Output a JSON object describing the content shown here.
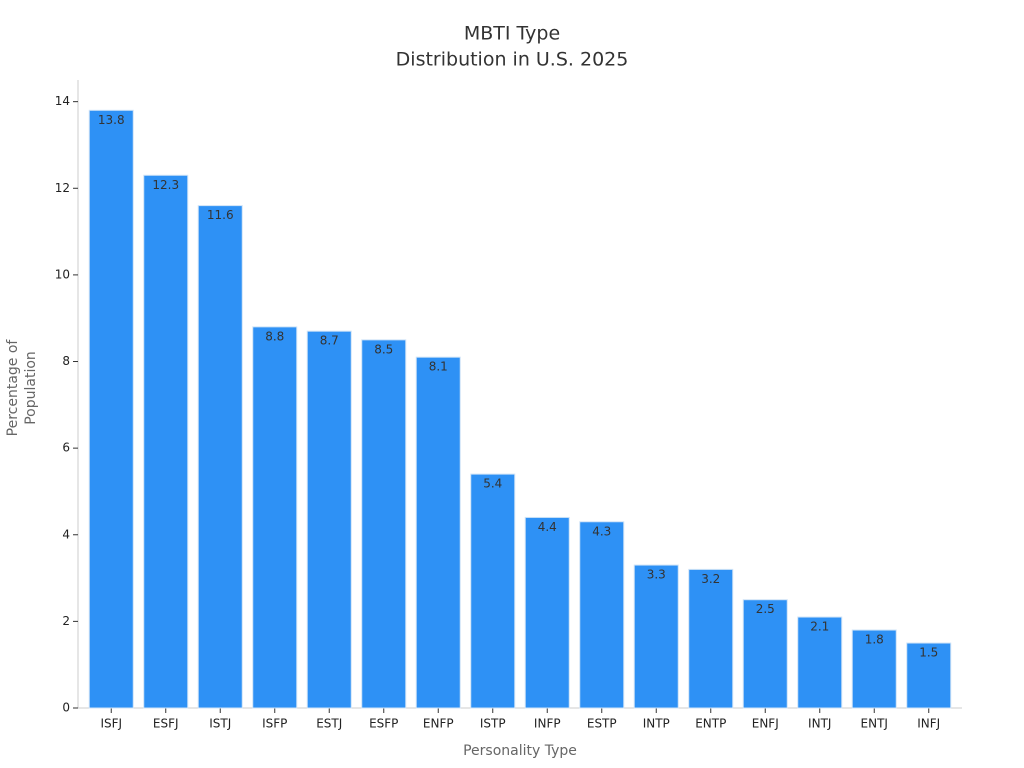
{
  "chart_data": {
    "type": "bar",
    "title": [
      "MBTI Type",
      "Distribution in U.S. 2025"
    ],
    "x_label": "Personality Type",
    "y_label": [
      "Percentage of",
      "Population"
    ],
    "categories": [
      "ISFJ",
      "ESFJ",
      "ISTJ",
      "ISFP",
      "ESTJ",
      "ESFP",
      "ENFP",
      "ISTP",
      "INFP",
      "ESTP",
      "INTP",
      "ENTP",
      "ENFJ",
      "INTJ",
      "ENTJ",
      "INFJ"
    ],
    "values": [
      13.8,
      12.3,
      11.6,
      8.8,
      8.7,
      8.5,
      8.1,
      5.4,
      4.4,
      4.3,
      3.3,
      3.2,
      2.5,
      2.1,
      1.8,
      1.5
    ],
    "color": "#2e91f5",
    "ylim": [
      0,
      14.5
    ],
    "yticks": [
      0,
      2,
      4,
      6,
      8,
      10,
      12,
      14
    ],
    "grid": false
  }
}
